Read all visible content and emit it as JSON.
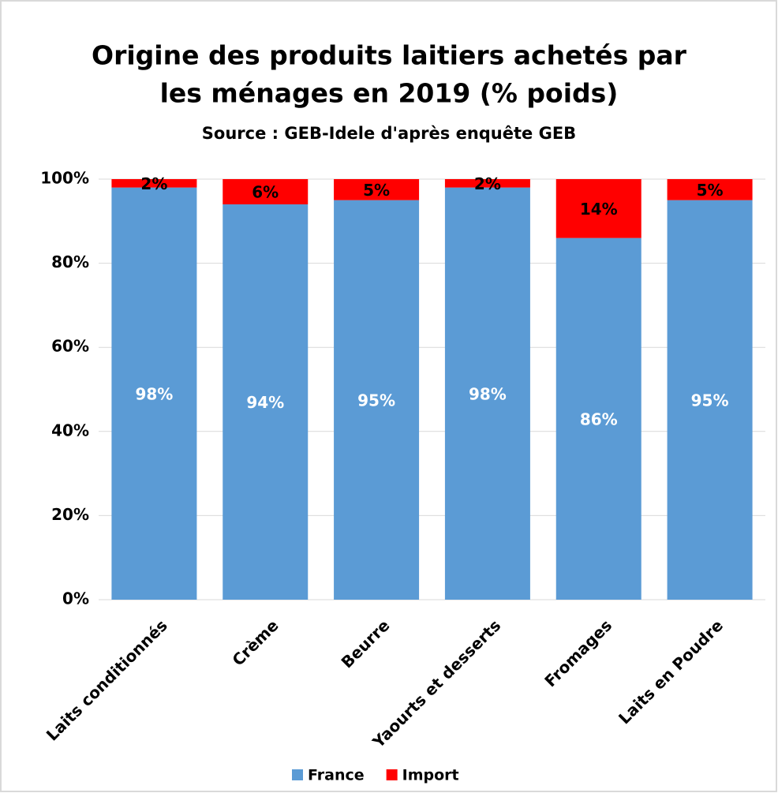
{
  "chart_data": {
    "type": "stacked_bar",
    "title": [
      "Origine des produits laitiers achetés par",
      "les ménages en 2019 (% poids)"
    ],
    "subtitle": "Source : GEB-Idele d'après enquête GEB",
    "categories": [
      "Laits conditionnés",
      "Crème",
      "Beurre",
      "Yaourts et desserts",
      "Fromages",
      "Laits en Poudre"
    ],
    "series": [
      {
        "name": "France",
        "color": "#5b9bd5",
        "values": [
          98,
          94,
          95,
          98,
          86,
          95
        ],
        "value_labels": [
          "98%",
          "94%",
          "95%",
          "98%",
          "86%",
          "95%"
        ],
        "label_color": "#ffffff"
      },
      {
        "name": "Import",
        "color": "#ff0000",
        "values": [
          2,
          6,
          5,
          2,
          14,
          5
        ],
        "value_labels": [
          "2%",
          "6%",
          "5%",
          "2%",
          "14%",
          "5%"
        ],
        "label_color": "#000000"
      }
    ],
    "ylim": [
      0,
      100
    ],
    "yticks": [
      {
        "value": 0,
        "label": "0%"
      },
      {
        "value": 20,
        "label": "20%"
      },
      {
        "value": 40,
        "label": "40%"
      },
      {
        "value": 60,
        "label": "60%"
      },
      {
        "value": 80,
        "label": "80%"
      },
      {
        "value": 100,
        "label": "100%"
      }
    ],
    "grid": true,
    "legend": "bottom"
  }
}
